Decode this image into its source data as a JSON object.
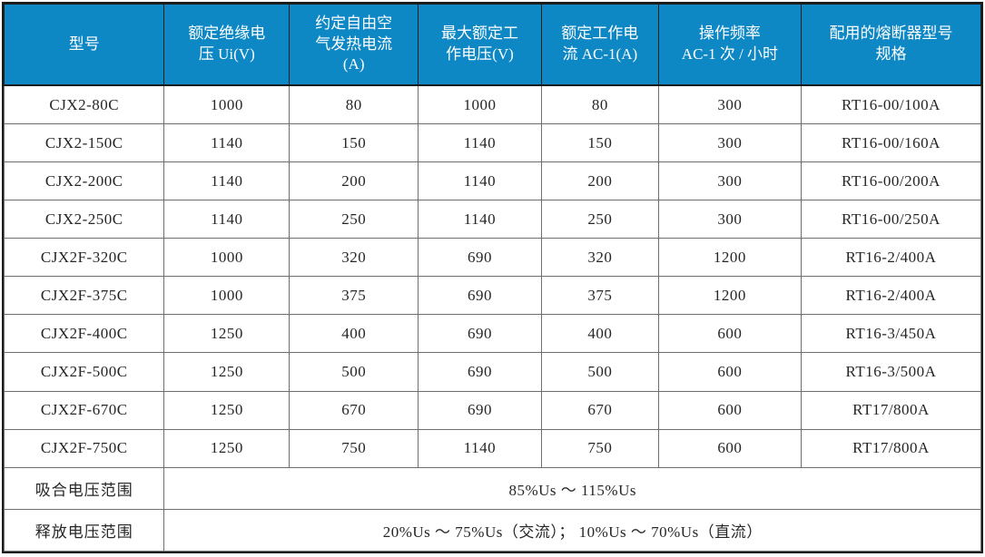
{
  "table": {
    "headers": [
      "型号",
      "额定绝缘电\n压 Ui(V)",
      "约定自由空\n气发热电流\n(A)",
      "最大额定工\n作电压(V)",
      "额定工作电\n流 AC-1(A)",
      "操作频率\nAC-1 次 / 小时",
      "配用的熔断器型号\n规格"
    ],
    "rows": [
      [
        "CJX2-80C",
        "1000",
        "80",
        "1000",
        "80",
        "300",
        "RT16-00/100A"
      ],
      [
        "CJX2-150C",
        "1140",
        "150",
        "1140",
        "150",
        "300",
        "RT16-00/160A"
      ],
      [
        "CJX2-200C",
        "1140",
        "200",
        "1140",
        "200",
        "300",
        "RT16-00/200A"
      ],
      [
        "CJX2-250C",
        "1140",
        "250",
        "1140",
        "250",
        "300",
        "RT16-00/250A"
      ],
      [
        "CJX2F-320C",
        "1000",
        "320",
        "690",
        "320",
        "1200",
        "RT16-2/400A"
      ],
      [
        "CJX2F-375C",
        "1000",
        "375",
        "690",
        "375",
        "1200",
        "RT16-2/400A"
      ],
      [
        "CJX2F-400C",
        "1250",
        "400",
        "690",
        "400",
        "600",
        "RT16-3/450A"
      ],
      [
        "CJX2F-500C",
        "1250",
        "500",
        "690",
        "500",
        "600",
        "RT16-3/500A"
      ],
      [
        "CJX2F-670C",
        "1250",
        "670",
        "690",
        "670",
        "600",
        "RT17/800A"
      ],
      [
        "CJX2F-750C",
        "1250",
        "750",
        "1140",
        "750",
        "600",
        "RT17/800A"
      ]
    ],
    "footer_rows": [
      {
        "label": "吸合电压范围",
        "value": "85%Us ～ 115%Us"
      },
      {
        "label": "释放电压范围",
        "value": "20%Us ～ 75%Us（交流）； 10%Us ～ 70%Us（直流）"
      }
    ]
  },
  "colors": {
    "header_bg": "#0e87c5",
    "header_text": "#ffffff",
    "body_text": "#262626",
    "grid": "#6e6e6e",
    "outer_border": "#1c1c1c"
  }
}
